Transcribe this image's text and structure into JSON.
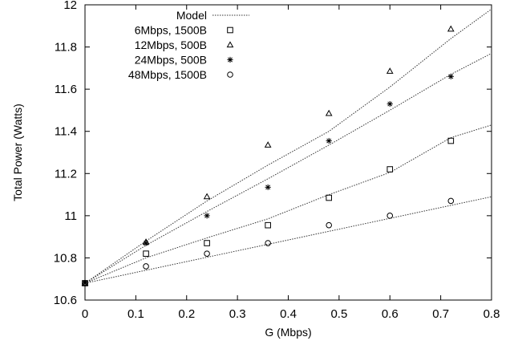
{
  "chart_data": {
    "type": "line",
    "title": "",
    "xlabel": "G (Mbps)",
    "ylabel": "Total Power (Watts)",
    "xlim": [
      0,
      0.8
    ],
    "ylim": [
      10.6,
      12
    ],
    "xticks": [
      "0",
      "0.1",
      "0.2",
      "0.3",
      "0.4",
      "0.5",
      "0.6",
      "0.7",
      "0.8"
    ],
    "yticks": [
      "10.6",
      "10.8",
      "11",
      "11.2",
      "11.4",
      "11.6",
      "11.8",
      "12"
    ],
    "grid": false,
    "legend_position": "top-left",
    "model_label": "Model",
    "series": [
      {
        "name": "6Mbps, 1500B",
        "marker": "square",
        "x": [
          0,
          0.12,
          0.24,
          0.36,
          0.48,
          0.6,
          0.72
        ],
        "y": [
          10.68,
          10.82,
          10.87,
          10.955,
          11.085,
          11.22,
          11.355
        ],
        "model_x": [
          0,
          0.12,
          0.24,
          0.36,
          0.48,
          0.6,
          0.72,
          0.8
        ],
        "model_y": [
          10.68,
          10.8,
          10.895,
          10.985,
          11.1,
          11.205,
          11.37,
          11.43
        ]
      },
      {
        "name": "12Mbps, 500B",
        "marker": "triangle",
        "x": [
          0,
          0.12,
          0.24,
          0.36,
          0.48,
          0.6,
          0.72
        ],
        "y": [
          10.68,
          10.875,
          11.09,
          11.335,
          11.485,
          11.685,
          11.885
        ],
        "model_x": [
          0,
          0.12,
          0.24,
          0.36,
          0.48,
          0.6,
          0.72,
          0.8
        ],
        "model_y": [
          10.68,
          10.88,
          11.07,
          11.24,
          11.4,
          11.61,
          11.84,
          11.98
        ]
      },
      {
        "name": "24Mbps, 500B",
        "marker": "star",
        "x": [
          0,
          0.12,
          0.24,
          0.36,
          0.48,
          0.6,
          0.72
        ],
        "y": [
          10.68,
          10.87,
          11.0,
          11.135,
          11.355,
          11.53,
          11.66
        ],
        "model_x": [
          0,
          0.12,
          0.24,
          0.36,
          0.48,
          0.6,
          0.72,
          0.8
        ],
        "model_y": [
          10.68,
          10.86,
          11.02,
          11.175,
          11.335,
          11.5,
          11.67,
          11.77
        ]
      },
      {
        "name": "48Mbps, 1500B",
        "marker": "circle",
        "x": [
          0,
          0.12,
          0.24,
          0.36,
          0.48,
          0.6,
          0.72
        ],
        "y": [
          10.68,
          10.76,
          10.82,
          10.87,
          10.955,
          11.0,
          11.07
        ],
        "model_x": [
          0,
          0.8
        ],
        "model_y": [
          10.68,
          11.09
        ]
      }
    ]
  }
}
